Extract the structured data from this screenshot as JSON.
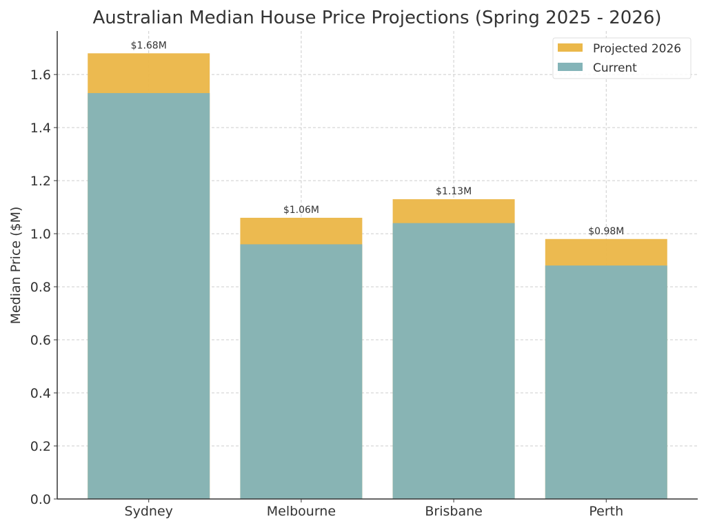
{
  "chart_data": {
    "type": "bar",
    "stacked": "overlay",
    "title": "Australian Median House Price Projections (Spring 2025 - 2026)",
    "xlabel": "",
    "ylabel": "Median Price ($M)",
    "categories": [
      "Sydney",
      "Melbourne",
      "Brisbane",
      "Perth"
    ],
    "series": [
      {
        "name": "Projected 2026",
        "values": [
          1.68,
          1.06,
          1.13,
          0.98
        ],
        "color": "#ebb84a"
      },
      {
        "name": "Current",
        "values": [
          1.53,
          0.96,
          1.04,
          0.88
        ],
        "color": "#84b4b8"
      }
    ],
    "data_labels": [
      "$1.68M",
      "$1.06M",
      "$1.13M",
      "$0.98M"
    ],
    "ylim": [
      0,
      1.764
    ],
    "yticks": [
      0.0,
      0.2,
      0.4,
      0.6,
      0.8,
      1.0,
      1.2,
      1.4,
      1.6
    ],
    "ytick_labels": [
      "0.0",
      "0.2",
      "0.4",
      "0.6",
      "0.8",
      "1.0",
      "1.2",
      "1.4",
      "1.6"
    ],
    "grid": true,
    "legend_position": "top-right"
  }
}
